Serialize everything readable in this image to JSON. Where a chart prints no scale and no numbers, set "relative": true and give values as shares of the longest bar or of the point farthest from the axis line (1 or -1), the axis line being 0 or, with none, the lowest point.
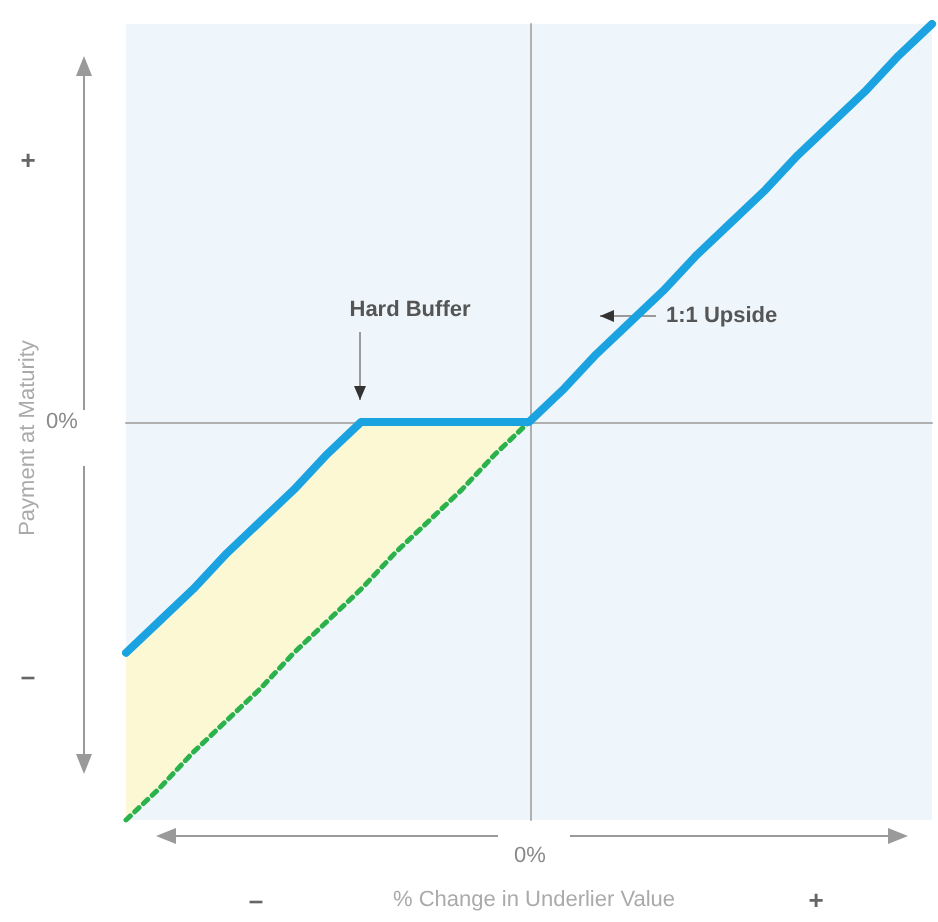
{
  "chart_data": {
    "type": "line",
    "relative": true,
    "xlabel": "% Change in Underlier Value",
    "ylabel": "Payment at Maturity",
    "categories": [
      null,
      null,
      null,
      null,
      null,
      null,
      null,
      null,
      null,
      null,
      null,
      null,
      null,
      null,
      null,
      null,
      null,
      null,
      null,
      null,
      null,
      null,
      null,
      null,
      null
    ],
    "series": [
      {
        "color": "#1aa3e0",
        "line_style": "solid",
        "values": [
          -0.58,
          -0.5,
          -0.42,
          -0.33,
          -0.25,
          -0.17,
          -0.08,
          0,
          0,
          0,
          0,
          0,
          0,
          0.08,
          0.17,
          0.25,
          0.33,
          0.42,
          0.5,
          0.58,
          0.67,
          0.75,
          0.83,
          0.92,
          1
        ],
        "lower": [
          -1,
          -0.92,
          -0.83,
          -0.75,
          -0.67,
          -0.58,
          -0.5,
          -0.42,
          -0.33,
          -0.25,
          -0.17,
          -0.08,
          0,
          null,
          null,
          null,
          null,
          null,
          null,
          null,
          null,
          null,
          null,
          null,
          null
        ],
        "upper": [
          -0.58,
          -0.5,
          -0.42,
          -0.33,
          -0.25,
          -0.17,
          -0.08,
          0,
          0,
          0,
          0,
          0,
          0,
          null,
          null,
          null,
          null,
          null,
          null,
          null,
          null,
          null,
          null,
          null,
          null
        ]
      },
      {
        "color": "#2bb24c",
        "line_style": "dotted",
        "values": [
          -1,
          -0.92,
          -0.83,
          -0.75,
          -0.67,
          -0.58,
          -0.5,
          -0.42,
          -0.33,
          -0.25,
          -0.17,
          -0.08,
          0,
          null,
          null,
          null,
          null,
          null,
          null,
          null,
          null,
          null,
          null,
          null,
          null
        ]
      }
    ],
    "annotations": [
      "Hard Buffer",
      "1:1 Upside",
      "+",
      "–",
      "–",
      "+",
      "0%",
      "0%"
    ],
    "marker": "none"
  }
}
